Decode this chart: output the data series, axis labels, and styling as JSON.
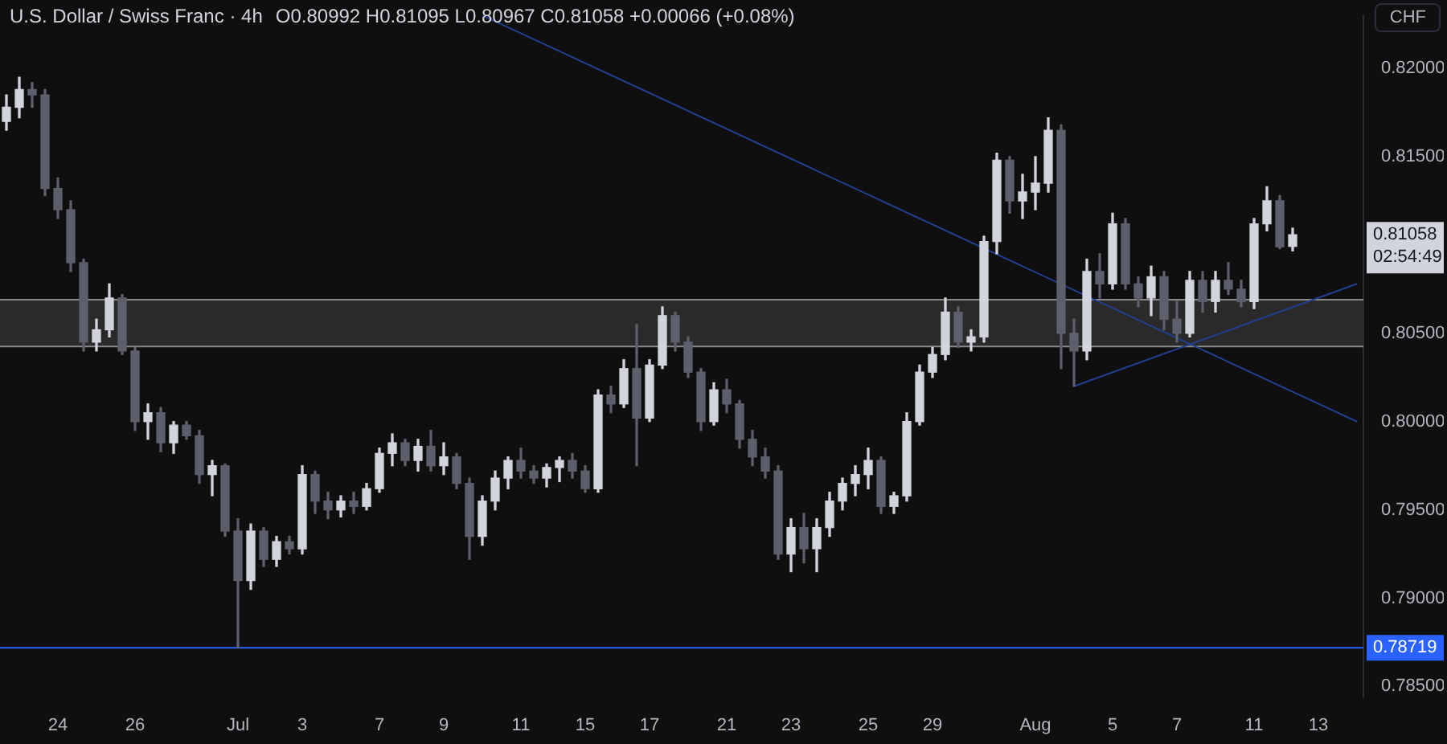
{
  "chart_data": {
    "type": "candlestick",
    "title": "U.S. Dollar / Swiss Franc · 4h",
    "subtitle": "O0.80992 H0.81095 L0.80967 C0.81058 +0.00066 (+0.08%)",
    "ylabel": "CHF",
    "categories": [
      null,
      null,
      null,
      null,
      "24",
      null,
      null,
      null,
      null,
      null,
      "26",
      null,
      null,
      null,
      null,
      null,
      null,
      null,
      "Jul",
      null,
      null,
      null,
      null,
      "3",
      null,
      null,
      null,
      null,
      null,
      "7",
      null,
      null,
      null,
      null,
      "9",
      null,
      null,
      null,
      null,
      null,
      "11",
      null,
      null,
      null,
      null,
      "15",
      null,
      null,
      null,
      null,
      "17",
      null,
      null,
      null,
      null,
      null,
      "21",
      null,
      null,
      null,
      null,
      "23",
      null,
      null,
      null,
      null,
      null,
      "25",
      null,
      null,
      null,
      null,
      "29",
      null,
      null,
      null,
      null,
      null,
      null,
      null,
      "Aug",
      null,
      null,
      null,
      null,
      null,
      "5",
      null,
      null,
      null,
      null,
      "7",
      null,
      null,
      null,
      null,
      null,
      "11",
      null,
      null,
      null,
      null,
      "13",
      null,
      null,
      null
    ],
    "ohlc": [
      [
        0.817,
        0.8185,
        0.8165,
        0.8178
      ],
      [
        0.8178,
        0.8195,
        0.8172,
        0.8188
      ],
      [
        0.8188,
        0.8192,
        0.8178,
        0.8185
      ],
      [
        0.8185,
        0.8188,
        0.8128,
        0.8132
      ],
      [
        0.8132,
        0.8138,
        0.8115,
        0.812
      ],
      [
        0.812,
        0.8125,
        0.8085,
        0.809
      ],
      [
        0.809,
        0.8092,
        0.804,
        0.8045
      ],
      [
        0.8045,
        0.8058,
        0.804,
        0.8052
      ],
      [
        0.8052,
        0.8078,
        0.8048,
        0.807
      ],
      [
        0.807,
        0.8072,
        0.8038,
        0.804
      ],
      [
        0.804,
        0.8042,
        0.7995,
        0.8
      ],
      [
        0.8,
        0.801,
        0.799,
        0.8005
      ],
      [
        0.8005,
        0.8008,
        0.7983,
        0.7988
      ],
      [
        0.7988,
        0.8,
        0.7982,
        0.7998
      ],
      [
        0.7998,
        0.8,
        0.799,
        0.7992
      ],
      [
        0.7992,
        0.7995,
        0.7965,
        0.797
      ],
      [
        0.797,
        0.7978,
        0.7958,
        0.7975
      ],
      [
        0.7975,
        0.7976,
        0.7935,
        0.7938
      ],
      [
        0.7938,
        0.7945,
        0.7872,
        0.791
      ],
      [
        0.791,
        0.7942,
        0.7905,
        0.7938
      ],
      [
        0.7938,
        0.794,
        0.7918,
        0.7922
      ],
      [
        0.7922,
        0.7935,
        0.7918,
        0.7932
      ],
      [
        0.7932,
        0.7935,
        0.7925,
        0.7928
      ],
      [
        0.7928,
        0.7975,
        0.7925,
        0.797
      ],
      [
        0.797,
        0.7972,
        0.7948,
        0.7955
      ],
      [
        0.7955,
        0.796,
        0.7945,
        0.795
      ],
      [
        0.795,
        0.7958,
        0.7946,
        0.7955
      ],
      [
        0.7955,
        0.796,
        0.7948,
        0.7952
      ],
      [
        0.7952,
        0.7965,
        0.795,
        0.7962
      ],
      [
        0.7962,
        0.7985,
        0.796,
        0.7982
      ],
      [
        0.7982,
        0.7993,
        0.7975,
        0.7988
      ],
      [
        0.7988,
        0.799,
        0.7975,
        0.7978
      ],
      [
        0.7978,
        0.799,
        0.7972,
        0.7986
      ],
      [
        0.7986,
        0.7995,
        0.7972,
        0.7975
      ],
      [
        0.7975,
        0.7988,
        0.797,
        0.798
      ],
      [
        0.798,
        0.7982,
        0.7962,
        0.7965
      ],
      [
        0.7965,
        0.7968,
        0.7922,
        0.7935
      ],
      [
        0.7935,
        0.7958,
        0.793,
        0.7955
      ],
      [
        0.7955,
        0.7972,
        0.795,
        0.7968
      ],
      [
        0.7968,
        0.798,
        0.7962,
        0.7978
      ],
      [
        0.7978,
        0.7985,
        0.7968,
        0.7972
      ],
      [
        0.7972,
        0.7975,
        0.7965,
        0.7968
      ],
      [
        0.7968,
        0.7976,
        0.7963,
        0.7974
      ],
      [
        0.7974,
        0.798,
        0.7966,
        0.7978
      ],
      [
        0.7978,
        0.7982,
        0.7968,
        0.7972
      ],
      [
        0.7972,
        0.7975,
        0.796,
        0.7962
      ],
      [
        0.7962,
        0.8018,
        0.796,
        0.8015
      ],
      [
        0.8015,
        0.802,
        0.8005,
        0.801
      ],
      [
        0.801,
        0.8035,
        0.8008,
        0.803
      ],
      [
        0.803,
        0.8055,
        0.7975,
        0.8002
      ],
      [
        0.8002,
        0.8035,
        0.8,
        0.8032
      ],
      [
        0.8032,
        0.8065,
        0.803,
        0.806
      ],
      [
        0.806,
        0.8062,
        0.804,
        0.8045
      ],
      [
        0.8045,
        0.8048,
        0.8025,
        0.8028
      ],
      [
        0.8028,
        0.803,
        0.7995,
        0.8
      ],
      [
        0.8,
        0.8022,
        0.7998,
        0.8018
      ],
      [
        0.8018,
        0.8024,
        0.8005,
        0.801
      ],
      [
        0.801,
        0.8012,
        0.7985,
        0.799
      ],
      [
        0.799,
        0.7995,
        0.7975,
        0.798
      ],
      [
        0.798,
        0.7985,
        0.7968,
        0.7972
      ],
      [
        0.7972,
        0.7975,
        0.7922,
        0.7925
      ],
      [
        0.7925,
        0.7945,
        0.7915,
        0.794
      ],
      [
        0.794,
        0.7948,
        0.792,
        0.7928
      ],
      [
        0.7928,
        0.7945,
        0.7915,
        0.794
      ],
      [
        0.794,
        0.796,
        0.7935,
        0.7955
      ],
      [
        0.7955,
        0.7968,
        0.795,
        0.7965
      ],
      [
        0.7965,
        0.7975,
        0.7958,
        0.797
      ],
      [
        0.797,
        0.7985,
        0.7962,
        0.7978
      ],
      [
        0.7978,
        0.798,
        0.7948,
        0.7952
      ],
      [
        0.7952,
        0.796,
        0.7948,
        0.7958
      ],
      [
        0.7958,
        0.8005,
        0.7955,
        0.8
      ],
      [
        0.8,
        0.8032,
        0.7998,
        0.8028
      ],
      [
        0.8028,
        0.8042,
        0.8025,
        0.8038
      ],
      [
        0.8038,
        0.807,
        0.8035,
        0.8062
      ],
      [
        0.8062,
        0.8065,
        0.8042,
        0.8045
      ],
      [
        0.8045,
        0.8052,
        0.804,
        0.8048
      ],
      [
        0.8048,
        0.8105,
        0.8045,
        0.8102
      ],
      [
        0.8102,
        0.8152,
        0.8095,
        0.8148
      ],
      [
        0.8148,
        0.815,
        0.8118,
        0.8125
      ],
      [
        0.8125,
        0.814,
        0.8115,
        0.813
      ],
      [
        0.813,
        0.815,
        0.812,
        0.8135
      ],
      [
        0.8135,
        0.8172,
        0.813,
        0.8165
      ],
      [
        0.8165,
        0.8168,
        0.803,
        0.805
      ],
      [
        0.805,
        0.8058,
        0.802,
        0.804
      ],
      [
        0.804,
        0.8092,
        0.8035,
        0.8085
      ],
      [
        0.8085,
        0.8095,
        0.807,
        0.8078
      ],
      [
        0.8078,
        0.8118,
        0.8075,
        0.8112
      ],
      [
        0.8112,
        0.8115,
        0.8075,
        0.8078
      ],
      [
        0.8078,
        0.8082,
        0.8065,
        0.807
      ],
      [
        0.807,
        0.8088,
        0.806,
        0.8082
      ],
      [
        0.8082,
        0.8085,
        0.8052,
        0.8058
      ],
      [
        0.8058,
        0.8068,
        0.8045,
        0.805
      ],
      [
        0.805,
        0.8085,
        0.8048,
        0.808
      ],
      [
        0.808,
        0.8085,
        0.8062,
        0.8068
      ],
      [
        0.8068,
        0.8085,
        0.8062,
        0.808
      ],
      [
        0.808,
        0.809,
        0.8072,
        0.8075
      ],
      [
        0.8075,
        0.808,
        0.8065,
        0.8068
      ],
      [
        0.8068,
        0.8115,
        0.8064,
        0.8112
      ],
      [
        0.8112,
        0.8133,
        0.8108,
        0.8125
      ],
      [
        0.8125,
        0.8128,
        0.8098,
        0.8099
      ],
      [
        0.80992,
        0.81095,
        0.80967,
        0.81058
      ],
      null,
      null,
      null,
      null,
      null
    ],
    "colors": [
      "#d1d4dc",
      "#d1d4dc",
      "#5d606b",
      "#5d606b",
      "#5d606b",
      "#5d606b",
      "#5d606b",
      "#d1d4dc",
      "#d1d4dc",
      "#5d606b",
      "#5d606b",
      "#d1d4dc",
      "#5d606b",
      "#d1d4dc",
      "#5d606b",
      "#5d606b",
      "#d1d4dc",
      "#5d606b",
      "#5d606b",
      "#d1d4dc",
      "#5d606b",
      "#d1d4dc",
      "#5d606b",
      "#d1d4dc",
      "#5d606b",
      "#5d606b",
      "#d1d4dc",
      "#5d606b",
      "#d1d4dc",
      "#d1d4dc",
      "#d1d4dc",
      "#5d606b",
      "#d1d4dc",
      "#5d606b",
      "#d1d4dc",
      "#5d606b",
      "#5d606b",
      "#d1d4dc",
      "#d1d4dc",
      "#d1d4dc",
      "#5d606b",
      "#5d606b",
      "#d1d4dc",
      "#d1d4dc",
      "#5d606b",
      "#5d606b",
      "#d1d4dc",
      "#5d606b",
      "#d1d4dc",
      "#5d606b",
      "#d1d4dc",
      "#d1d4dc",
      "#5d606b",
      "#5d606b",
      "#5d606b",
      "#d1d4dc",
      "#5d606b",
      "#5d606b",
      "#5d606b",
      "#5d606b",
      "#5d606b",
      "#d1d4dc",
      "#5d606b",
      "#d1d4dc",
      "#d1d4dc",
      "#d1d4dc",
      "#d1d4dc",
      "#d1d4dc",
      "#5d606b",
      "#d1d4dc",
      "#d1d4dc",
      "#d1d4dc",
      "#d1d4dc",
      "#d1d4dc",
      "#5d606b",
      "#d1d4dc",
      "#d1d4dc",
      "#d1d4dc",
      "#5d606b",
      "#d1d4dc",
      "#d1d4dc",
      "#d1d4dc",
      "#5d606b",
      "#5d606b",
      "#d1d4dc",
      "#5d606b",
      "#d1d4dc",
      "#5d606b",
      "#5d606b",
      "#d1d4dc",
      "#5d606b",
      "#5d606b",
      "#d1d4dc",
      "#5d606b",
      "#d1d4dc",
      "#5d606b",
      "#5d606b",
      "#d1d4dc",
      "#d1d4dc",
      "#5d606b",
      "#d1d4dc",
      null,
      null,
      null,
      null,
      null
    ],
    "series": [
      {
        "type": "line",
        "color": "#233f8f",
        "values": [
          null,
          null,
          null,
          null,
          null,
          null,
          null,
          null,
          null,
          null,
          null,
          null,
          null,
          null,
          null,
          null,
          null,
          null,
          null,
          null,
          null,
          null,
          null,
          null,
          null,
          null,
          null,
          null,
          null,
          null,
          null,
          null,
          null,
          null,
          null,
          null,
          null,
          0.823,
          null,
          null,
          null,
          null,
          null,
          null,
          null,
          null,
          null,
          null,
          null,
          null,
          null,
          null,
          null,
          null,
          null,
          null,
          null,
          null,
          null,
          null,
          null,
          null,
          null,
          null,
          null,
          null,
          null,
          null,
          null,
          null,
          null,
          null,
          null,
          null,
          null,
          null,
          null,
          null,
          null,
          null,
          null,
          null,
          null,
          null,
          null,
          null,
          null,
          null,
          null,
          null,
          null,
          null,
          null,
          null,
          null,
          null,
          null,
          null,
          null,
          null,
          null,
          null,
          null,
          null,
          null,
          0.8
        ]
      },
      {
        "type": "line",
        "color": "#233f8f",
        "values": [
          null,
          null,
          null,
          null,
          null,
          null,
          null,
          null,
          null,
          null,
          null,
          null,
          null,
          null,
          null,
          null,
          null,
          null,
          null,
          null,
          null,
          null,
          null,
          null,
          null,
          null,
          null,
          null,
          null,
          null,
          null,
          null,
          null,
          null,
          null,
          null,
          null,
          null,
          null,
          null,
          null,
          null,
          null,
          null,
          null,
          null,
          null,
          null,
          null,
          null,
          null,
          null,
          null,
          null,
          null,
          null,
          null,
          null,
          null,
          null,
          null,
          null,
          null,
          null,
          null,
          null,
          null,
          null,
          null,
          null,
          null,
          null,
          null,
          null,
          null,
          null,
          null,
          null,
          null,
          null,
          null,
          null,
          null,
          0.802,
          null,
          null,
          null,
          null,
          null,
          null,
          null,
          null,
          null,
          null,
          null,
          null,
          null,
          null,
          null,
          null,
          null,
          null,
          null,
          null,
          null,
          0.8078
        ]
      }
    ],
    "ylim": [
      0.7844,
      0.823
    ],
    "yticks": [
      {
        "value": 0.785,
        "label": "0.78500"
      },
      {
        "value": 0.79,
        "label": "0.79000"
      },
      {
        "value": 0.795,
        "label": "0.79500"
      },
      {
        "value": 0.8,
        "label": "0.80000"
      },
      {
        "value": 0.805,
        "label": "0.80500"
      },
      {
        "value": 0.815,
        "label": "0.81500"
      },
      {
        "value": 0.82,
        "label": "0.82000"
      }
    ],
    "bands": [
      {
        "axis": "y",
        "from": 0.80425,
        "to": 0.8069,
        "color": "#2a2a2a"
      }
    ],
    "ref_lines": [
      {
        "axis": "y",
        "value": 0.78719,
        "label": "0.78719",
        "color": "#2962ff"
      },
      {
        "axis": "y",
        "value": 0.8069,
        "color": "#8a8a8a"
      },
      {
        "axis": "y",
        "value": 0.80425,
        "color": "#8a8a8a"
      }
    ],
    "annotations": [
      "0.81058",
      "02:54:49"
    ]
  }
}
